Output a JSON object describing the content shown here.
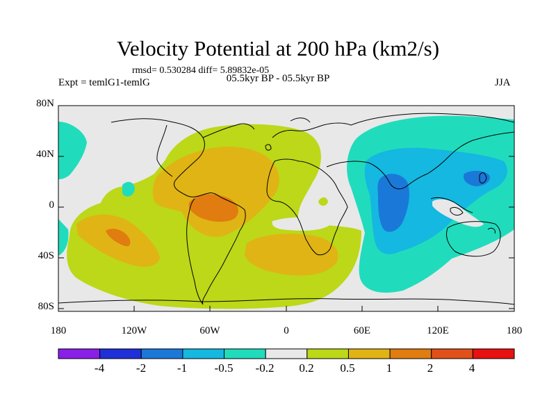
{
  "title": "Velocity Potential at 200 hPa (km2/s)",
  "stats": "rmsd= 0.530284 diff= 5.89832e-05",
  "expt": "Expt = temlG1-temlG",
  "period": "05.5kyr BP - 05.5kyr BP",
  "season": "JJA",
  "lat_ticks": [
    "80N",
    "40N",
    "0",
    "40S",
    "80S"
  ],
  "lon_ticks": [
    "180",
    "120W",
    "60W",
    "0",
    "60E",
    "120E",
    "180"
  ],
  "colorbar": {
    "labels": [
      "-4",
      "-2",
      "-1",
      "-0.5",
      "-0.2",
      "0.2",
      "0.5",
      "1",
      "2",
      "4"
    ],
    "colors": [
      "#8a1fe8",
      "#2030d8",
      "#1a78d8",
      "#14b8e0",
      "#20dcbc",
      "#e8e8e8",
      "#bcd818",
      "#e0b414",
      "#e07c10",
      "#e05018",
      "#e81010"
    ]
  },
  "map_colors": {
    "ocean_bg": "#e8e8e8",
    "pos_0_2": "#bcd818",
    "pos_0_5": "#e0b414",
    "pos_1": "#e07c10",
    "neg_0_2": "#20dcbc",
    "neg_0_5": "#14b8e0",
    "neg_1": "#1a78d8",
    "coast": "#000000"
  }
}
